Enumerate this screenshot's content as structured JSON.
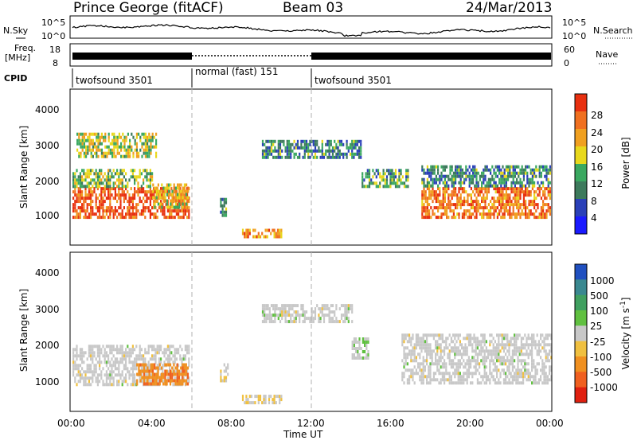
{
  "header": {
    "station": "Prince George (fitACF)",
    "beam": "Beam 03",
    "date": "24/Mar/2013"
  },
  "strip_labels": {
    "nsky": "N.Sky",
    "nsky_ticks": [
      "10^5",
      "10^0"
    ],
    "nsearch": "N.Search",
    "nsearch_ticks": [
      "10^5",
      "10^0"
    ],
    "freq": "Freq.",
    "freq_unit": "[MHz]",
    "freq_ticks": [
      "18",
      "8"
    ],
    "nave": "Nave",
    "nave_ticks": [
      "60",
      "0"
    ],
    "cpid": "CPID"
  },
  "cpid_segments": [
    {
      "label": "twofsound 3501",
      "start_hour": 0,
      "end_hour": 6
    },
    {
      "label": "normal (fast) 151",
      "start_hour": 6,
      "end_hour": 12
    },
    {
      "label": "twofsound 3501",
      "start_hour": 12,
      "end_hour": 24
    }
  ],
  "axes": {
    "ylabel": "Slant Range [km]",
    "yticks": [
      "1000",
      "2000",
      "3000",
      "4000"
    ],
    "xticks": [
      "00:00",
      "04:00",
      "08:00",
      "12:00",
      "16:00",
      "20:00",
      "00:00"
    ],
    "xlabel": "Time UT"
  },
  "power_bar": {
    "label": "Power [dB]",
    "ticks": [
      "4",
      "8",
      "12",
      "16",
      "20",
      "24",
      "28"
    ],
    "colors": [
      "#1a1aff",
      "#2a40b8",
      "#3d7a5c",
      "#3aa860",
      "#e8d81c",
      "#f0a020",
      "#f07020",
      "#e83010"
    ]
  },
  "velocity_bar": {
    "label": "Velocity [m s",
    "label_sup": "-1",
    "label_end": "]",
    "ticks": [
      "1000",
      "500",
      "100",
      "25",
      "-25",
      "-100",
      "-500",
      "-1000"
    ],
    "colors": [
      "#2050c0",
      "#3a8890",
      "#40a060",
      "#60c040",
      "#c8c8c8",
      "#f0c040",
      "#f09020",
      "#f06020",
      "#e02010"
    ]
  },
  "chart_data": {
    "type": "heatmap",
    "title": "Prince George (fitACF)",
    "xlabel": "Time UT",
    "ylabel": "Slant Range [km]",
    "xlim": [
      0,
      24
    ],
    "ylim": [
      200,
      4500
    ],
    "panels": [
      {
        "name": "Power [dB]",
        "clim": [
          0,
          30
        ],
        "bands": [
          {
            "start_hour": 0.0,
            "end_hour": 5.8,
            "range_km": [
              1000,
              1800
            ],
            "value": 26
          },
          {
            "start_hour": 0.0,
            "end_hour": 4.0,
            "range_km": [
              1800,
              2300
            ],
            "value": 14
          },
          {
            "start_hour": 0.2,
            "end_hour": 4.2,
            "range_km": [
              2600,
              3300
            ],
            "value": 16
          },
          {
            "start_hour": 4.0,
            "end_hour": 5.8,
            "range_km": [
              1200,
              1900
            ],
            "value": 18
          },
          {
            "start_hour": 7.4,
            "end_hour": 7.7,
            "range_km": [
              1000,
              1500
            ],
            "value": 12
          },
          {
            "start_hour": 8.5,
            "end_hour": 10.5,
            "range_km": [
              450,
              650
            ],
            "value": 22
          },
          {
            "start_hour": 9.5,
            "end_hour": 14.5,
            "range_km": [
              2600,
              3100
            ],
            "value": 10
          },
          {
            "start_hour": 14.5,
            "end_hour": 16.8,
            "range_km": [
              1800,
              2300
            ],
            "value": 12
          },
          {
            "start_hour": 17.5,
            "end_hour": 24.0,
            "range_km": [
              1000,
              1800
            ],
            "value": 24
          },
          {
            "start_hour": 17.5,
            "end_hour": 24.0,
            "range_km": [
              1800,
              2400
            ],
            "value": 10
          }
        ]
      },
      {
        "name": "Velocity [m s-1]",
        "clim": [
          -1000,
          1000
        ],
        "bands": [
          {
            "start_hour": 0.0,
            "end_hour": 5.8,
            "range_km": [
              900,
              2000
            ],
            "value": 0
          },
          {
            "start_hour": 3.2,
            "end_hour": 5.8,
            "range_km": [
              900,
              1500
            ],
            "value": -500
          },
          {
            "start_hour": 7.4,
            "end_hour": 7.8,
            "range_km": [
              1000,
              1500
            ],
            "value": -100
          },
          {
            "start_hour": 8.5,
            "end_hour": 10.5,
            "range_km": [
              450,
              650
            ],
            "value": -100
          },
          {
            "start_hour": 9.5,
            "end_hour": 14.0,
            "range_km": [
              2600,
              3100
            ],
            "value": 0
          },
          {
            "start_hour": 14.0,
            "end_hour": 14.8,
            "range_km": [
              1600,
              2200
            ],
            "value": 100
          },
          {
            "start_hour": 16.5,
            "end_hour": 24.0,
            "range_km": [
              1000,
              2300
            ],
            "value": 0
          }
        ]
      }
    ]
  }
}
